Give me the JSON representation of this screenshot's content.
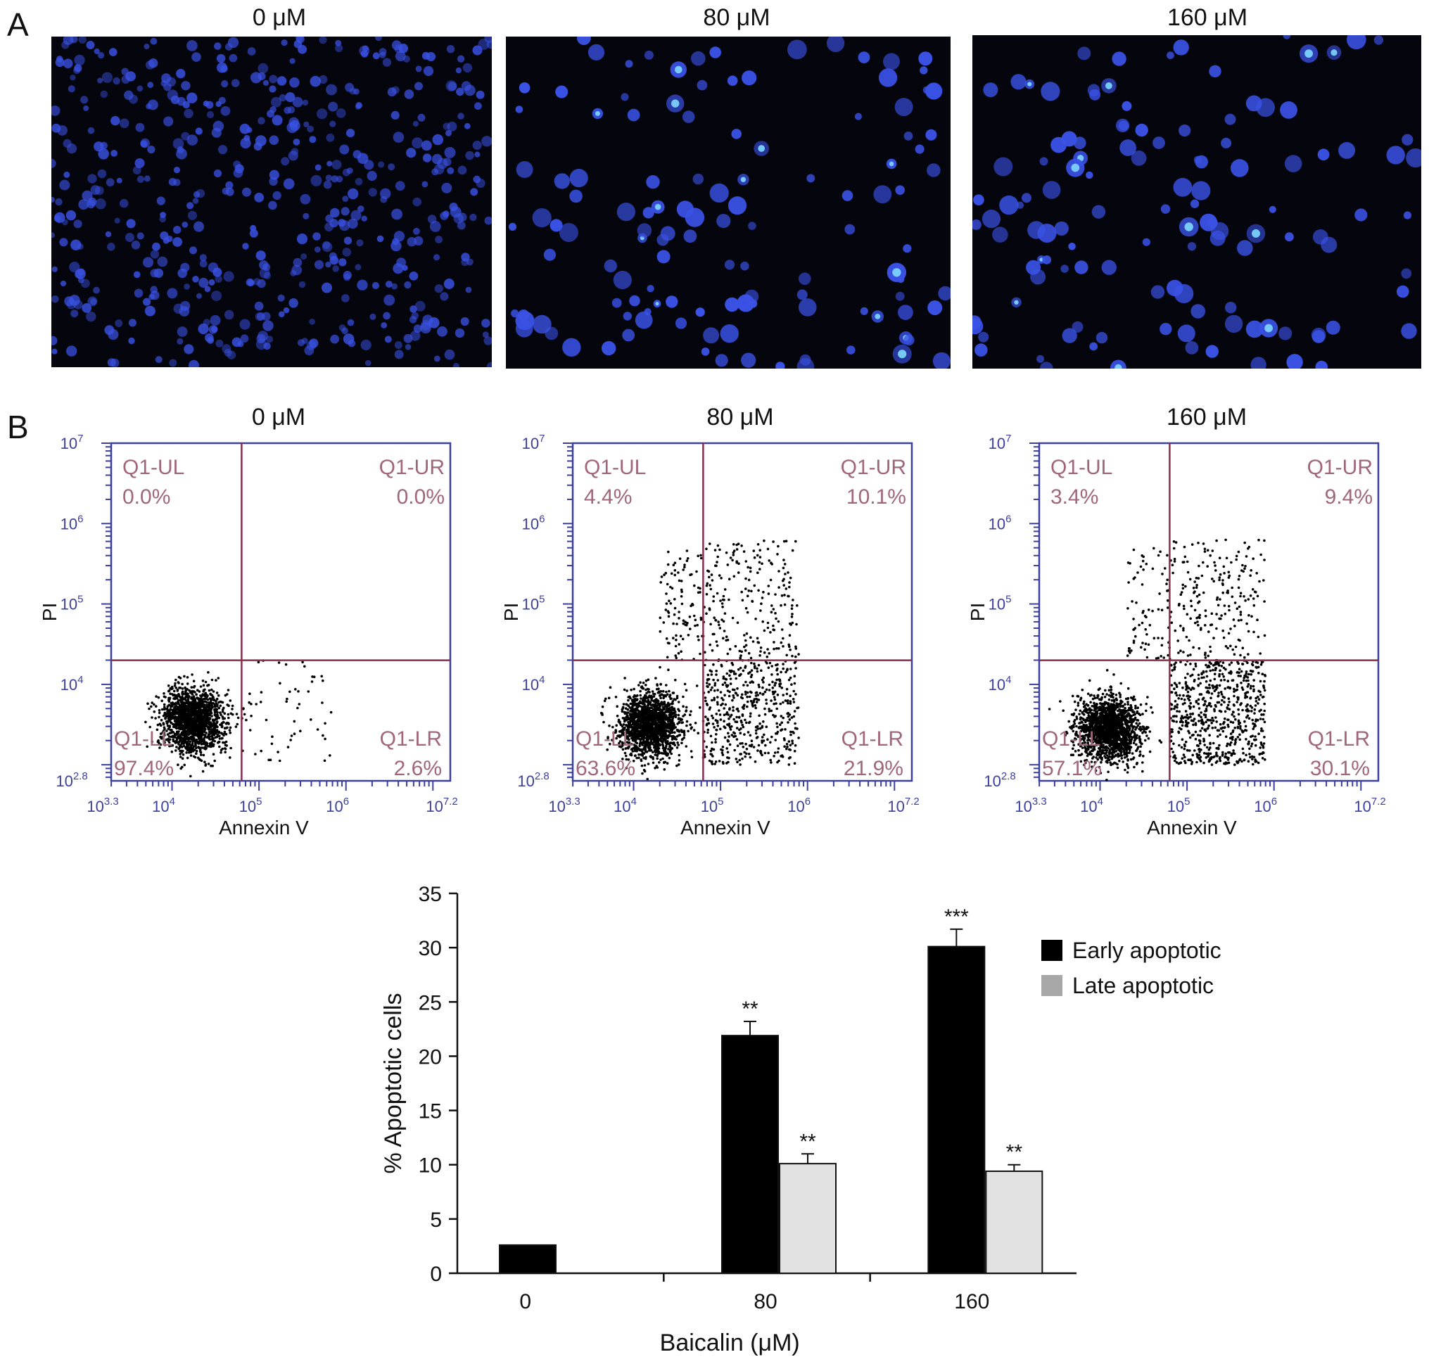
{
  "panel_labels": {
    "a": "A",
    "b": "B"
  },
  "chart_data": [
    {
      "type": "image-panels",
      "stain_color": "#3a52e6",
      "images": [
        {
          "title": "0 μM",
          "density": "high"
        },
        {
          "title": "80 μM",
          "density": "medium"
        },
        {
          "title": "160 μM",
          "density": "medium"
        }
      ]
    },
    {
      "type": "scatter",
      "log_scale": true,
      "xlabel": "Annexin V",
      "ylabel": "PI",
      "x_ticks": [
        "10^3.3",
        "10^4",
        "10^5",
        "10^6",
        "10^7.2"
      ],
      "y_ticks": [
        "10^2.8",
        "10^4",
        "10^5",
        "10^6",
        "10^7"
      ],
      "xlim": [
        3.3,
        7.2
      ],
      "ylim": [
        2.8,
        7
      ],
      "gate": {
        "x": 4.8,
        "y": 4.3
      },
      "plots": [
        {
          "title": "0 μM",
          "quadrants": {
            "UL": {
              "label": "Q1-UL",
              "pct": "0.0%"
            },
            "UR": {
              "label": "Q1-UR",
              "pct": "0.0%"
            },
            "LL": {
              "label": "Q1-LL",
              "pct": "97.4%"
            },
            "LR": {
              "label": "Q1-LR",
              "pct": "2.6%"
            }
          },
          "population": {
            "ll_center": [
              4.2,
              3.55
            ]
          }
        },
        {
          "title": "80 μM",
          "quadrants": {
            "UL": {
              "label": "Q1-UL",
              "pct": "4.4%"
            },
            "UR": {
              "label": "Q1-UR",
              "pct": "10.1%"
            },
            "LL": {
              "label": "Q1-LL",
              "pct": "63.6%"
            },
            "LR": {
              "label": "Q1-LR",
              "pct": "21.9%"
            }
          },
          "population": {
            "ll_center": [
              4.15,
              3.5
            ]
          }
        },
        {
          "title": "160 μM",
          "quadrants": {
            "UL": {
              "label": "Q1-UL",
              "pct": "3.4%"
            },
            "UR": {
              "label": "Q1-UR",
              "pct": "9.4%"
            },
            "LL": {
              "label": "Q1-LL",
              "pct": "57.1%"
            },
            "LR": {
              "label": "Q1-LR",
              "pct": "30.1%"
            }
          },
          "population": {
            "ll_center": [
              4.05,
              3.45
            ]
          }
        }
      ]
    },
    {
      "type": "bar",
      "categories": [
        "0",
        "80",
        "160"
      ],
      "series": [
        {
          "name": "Early apoptotic",
          "color": "#000000",
          "values": [
            2.6,
            21.9,
            30.1
          ],
          "errors": [
            0,
            1.3,
            1.6
          ],
          "significance": [
            "",
            "**",
            "***"
          ]
        },
        {
          "name": "Late apoptotic",
          "color": "#e2e2e2",
          "values": [
            0,
            10.1,
            9.4
          ],
          "errors": [
            0,
            0.9,
            0.6
          ],
          "significance": [
            "",
            "**",
            "**"
          ]
        }
      ],
      "xlabel": "Baicalin (μM)",
      "ylabel": "% Apoptotic cells",
      "ylim": [
        0,
        35
      ],
      "yticks": [
        0,
        5,
        10,
        15,
        20,
        25,
        30,
        35
      ],
      "legend_position": "top-right"
    }
  ]
}
